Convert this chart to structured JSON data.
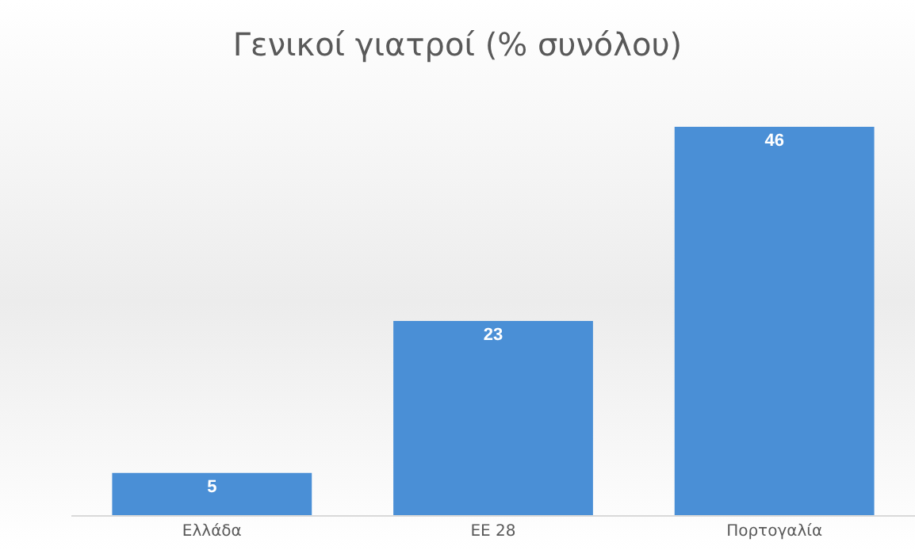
{
  "chart_data": {
    "type": "bar",
    "title": "Γενικοί γιατροί (% συνόλου)",
    "categories": [
      "Ελλάδα",
      "ΕΕ 28",
      "Πορτογαλία"
    ],
    "values": [
      5,
      23,
      46
    ],
    "color": "#4a8fd6",
    "data_labels": true
  }
}
